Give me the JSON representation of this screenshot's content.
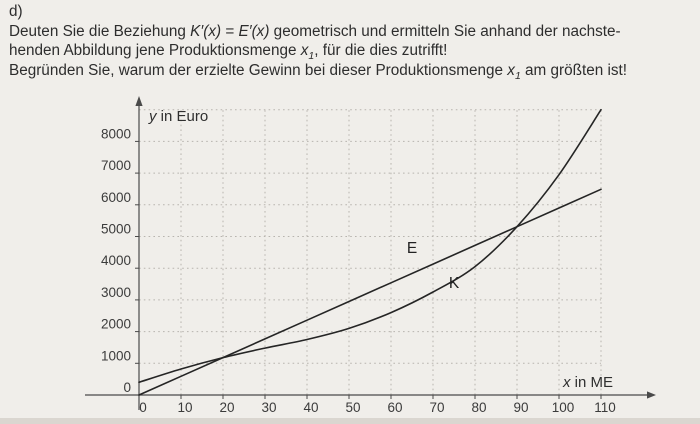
{
  "page": {
    "background_color": "#f0eeea",
    "bottom_edge_color": "#dad6d0",
    "text_color": "#2d2d2d"
  },
  "task": {
    "label": "d)",
    "line1": {
      "t1": "Deuten Sie die Beziehung ",
      "m1": "K′(x)",
      "t2": " = ",
      "m2": "E′(x)",
      "t3": " geometrisch und ermitteln Sie anhand der nachste-"
    },
    "line2": {
      "t1": "henden Abbildung jene Produktionsmenge ",
      "var1": "x",
      "sub1": "1",
      "t2": ", für die dies zutrifft!"
    },
    "line3": {
      "t1": "Begründen Sie, warum der erzielte Gewinn bei dieser Produktionsmenge ",
      "var1": "x",
      "sub1": "1",
      "t2": " am größten ist!"
    }
  },
  "chart_data": {
    "type": "line",
    "title": "",
    "xlabel": "x in ME",
    "ylabel": "y in Euro",
    "x_ticks": [
      0,
      10,
      20,
      30,
      40,
      50,
      60,
      70,
      80,
      90,
      100,
      110
    ],
    "y_ticks": [
      0,
      1000,
      2000,
      3000,
      4000,
      5000,
      6000,
      7000,
      8000
    ],
    "xlim": [
      0,
      117
    ],
    "ylim": [
      0,
      9300
    ],
    "grid": true,
    "legend_position": "none",
    "x": [
      0,
      10,
      20,
      30,
      40,
      50,
      60,
      70,
      80,
      90,
      100,
      110
    ],
    "series": [
      {
        "name": "E",
        "label": "E",
        "shape": "straight",
        "values": [
          0,
          590,
          1180,
          1770,
          2360,
          2950,
          3540,
          4130,
          4720,
          5310,
          5900,
          6490
        ],
        "label_at": {
          "x": 65,
          "y": 4480
        }
      },
      {
        "name": "K",
        "label": "K",
        "shape": "smooth",
        "values": [
          400,
          820,
          1180,
          1480,
          1750,
          2100,
          2600,
          3250,
          4050,
          5310,
          6950,
          9000
        ],
        "label_at": {
          "x": 75,
          "y": 3370
        }
      }
    ],
    "visible_intersections": [
      {
        "x": 20,
        "y": 1180
      },
      {
        "x": 90,
        "y": 5310
      }
    ],
    "axis_color": "#4a4a4a",
    "grid_color": "#b7b4ae",
    "curve_color": "#252525",
    "tick_label_color": "#3b3b3b"
  }
}
